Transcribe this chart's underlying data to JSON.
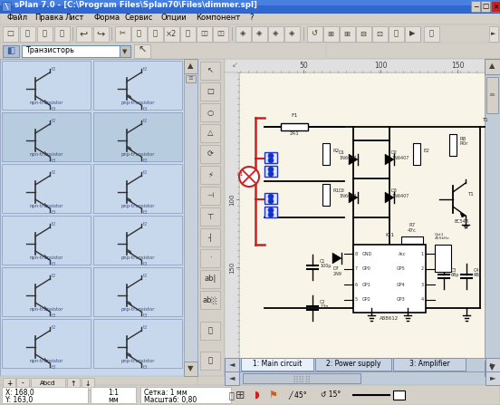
{
  "title_bar_text": "sPlan 7.0 - [C:\\Program Files\\Splan70\\Files\\dimmer.spl]",
  "title_bar_bg": "#3068d0",
  "title_bar_text_color": "#ffffff",
  "menu_items": [
    "Файл",
    "Правка",
    "Лист",
    "Форма",
    "Сервис",
    "Опции",
    "Компонент",
    "?"
  ],
  "menu_bg": "#d4d0c8",
  "window_bg": "#d4d0c8",
  "left_panel_bg": "#c8d8ec",
  "canvas_bg": "#dce4f0",
  "schematic_bg": "#f8f4e8",
  "tab_labels": [
    "1: Main circuit",
    "2: Power supply",
    "3: Amplifier"
  ],
  "toolbar_bg": "#d4d0c8",
  "ruler_bg": "#e0e0e0",
  "ruler_text_color": "#404040",
  "scrollbar_bg": "#c0ccd8",
  "scrollbar_thumb": "#8090a8",
  "fig_width": 5.52,
  "fig_height": 4.47,
  "dpi": 100
}
